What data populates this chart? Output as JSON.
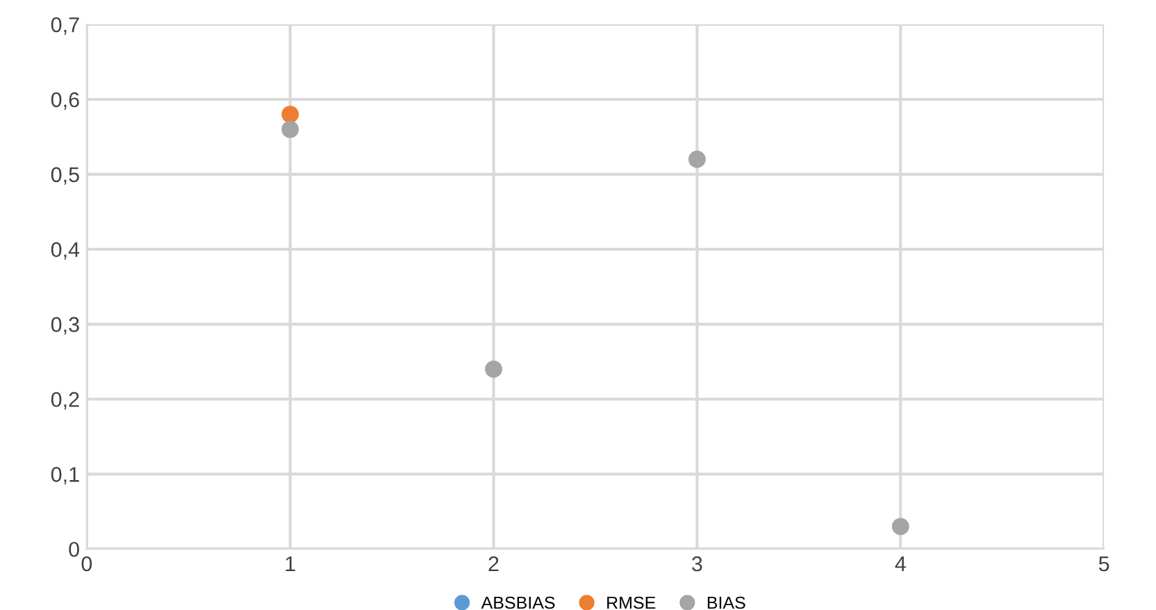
{
  "chart_data": {
    "type": "scatter",
    "x": [
      1,
      2,
      3,
      4
    ],
    "series": [
      {
        "name": "ABSBIAS",
        "color": "#5b9bd5",
        "values": [
          null,
          null,
          null,
          null
        ]
      },
      {
        "name": "RMSE",
        "color": "#ed7d31",
        "values": [
          0.58,
          null,
          null,
          null
        ]
      },
      {
        "name": "BIAS",
        "color": "#a5a5a5",
        "values": [
          0.56,
          0.24,
          0.52,
          0.03
        ]
      }
    ],
    "xlim": [
      0,
      5
    ],
    "xticks": [
      0,
      1,
      2,
      3,
      4,
      5
    ],
    "ylim": [
      0,
      0.7
    ],
    "yticks": [
      0,
      {
        "value": 0.1,
        "label": "0,1"
      },
      {
        "value": 0.2,
        "label": "0,2"
      },
      {
        "value": 0.3,
        "label": "0,3"
      },
      {
        "value": 0.4,
        "label": "0,4"
      },
      {
        "value": 0.5,
        "label": "0,5"
      },
      {
        "value": 0.6,
        "label": "0,6"
      },
      {
        "value": 0.7,
        "label": "0,7"
      }
    ],
    "grid": true,
    "legend": "bottom",
    "marker": "circle"
  }
}
